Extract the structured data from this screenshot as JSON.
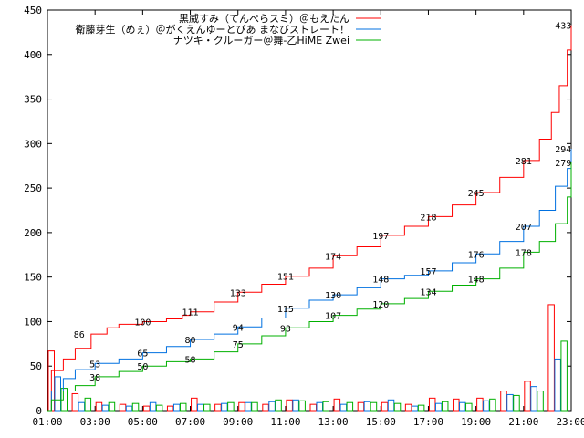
{
  "chart_data": {
    "type": "line",
    "xlim": [
      "01:00",
      "23:00"
    ],
    "ylim": [
      0,
      450
    ],
    "grid": false,
    "legend_position": "top-center",
    "x_ticks": [
      "01:00",
      "03:00",
      "05:00",
      "07:00",
      "09:00",
      "11:00",
      "13:00",
      "15:00",
      "17:00",
      "19:00",
      "21:00",
      "23:00"
    ],
    "y_ticks": [
      "0",
      "50",
      "100",
      "150",
      "200",
      "250",
      "300",
      "350",
      "400",
      "450"
    ],
    "series": [
      {
        "name": "黒威すみ（てんぺらスミ）＠もえたん",
        "color": "#ff0000",
        "points": [
          [
            "01:00",
            0
          ],
          [
            "01:10",
            45
          ],
          [
            "01:40",
            58
          ],
          [
            "02:10",
            70
          ],
          [
            "02:50",
            86
          ],
          [
            "03:30",
            93
          ],
          [
            "04:00",
            97
          ],
          [
            "05:00",
            100
          ],
          [
            "06:00",
            103
          ],
          [
            "06:40",
            107
          ],
          [
            "07:00",
            111
          ],
          [
            "08:00",
            122
          ],
          [
            "09:00",
            133
          ],
          [
            "10:00",
            142
          ],
          [
            "11:00",
            151
          ],
          [
            "12:00",
            160
          ],
          [
            "13:00",
            174
          ],
          [
            "14:00",
            184
          ],
          [
            "15:00",
            197
          ],
          [
            "16:00",
            207
          ],
          [
            "17:00",
            218
          ],
          [
            "18:00",
            231
          ],
          [
            "19:00",
            245
          ],
          [
            "20:00",
            262
          ],
          [
            "21:00",
            281
          ],
          [
            "21:40",
            305
          ],
          [
            "22:10",
            335
          ],
          [
            "22:30",
            365
          ],
          [
            "22:50",
            405
          ],
          [
            "23:00",
            433
          ]
        ],
        "labels": [
          [
            "02:20",
            86,
            "86"
          ],
          [
            "05:00",
            100,
            "100"
          ],
          [
            "07:00",
            111,
            "111"
          ],
          [
            "09:00",
            133,
            "133"
          ],
          [
            "11:00",
            151,
            "151"
          ],
          [
            "13:00",
            174,
            "174"
          ],
          [
            "15:00",
            197,
            "197"
          ],
          [
            "17:00",
            218,
            "218"
          ],
          [
            "19:00",
            245,
            "245"
          ],
          [
            "21:00",
            281,
            "281"
          ],
          [
            "22:40",
            433,
            "433"
          ]
        ]
      },
      {
        "name": "衛藤芽生（めぇ）＠がくえんゆーとぴあ まなびストレート！",
        "color": "#0070e0",
        "points": [
          [
            "01:00",
            0
          ],
          [
            "01:10",
            22
          ],
          [
            "01:40",
            36
          ],
          [
            "02:10",
            46
          ],
          [
            "03:00",
            53
          ],
          [
            "04:00",
            58
          ],
          [
            "05:00",
            65
          ],
          [
            "06:00",
            72
          ],
          [
            "07:00",
            80
          ],
          [
            "08:00",
            86
          ],
          [
            "09:00",
            94
          ],
          [
            "10:00",
            104
          ],
          [
            "11:00",
            115
          ],
          [
            "12:00",
            124
          ],
          [
            "13:00",
            130
          ],
          [
            "14:00",
            138
          ],
          [
            "15:00",
            148
          ],
          [
            "16:00",
            152
          ],
          [
            "17:00",
            157
          ],
          [
            "18:00",
            166
          ],
          [
            "19:00",
            176
          ],
          [
            "20:00",
            190
          ],
          [
            "21:00",
            207
          ],
          [
            "21:40",
            225
          ],
          [
            "22:20",
            252
          ],
          [
            "22:50",
            272
          ],
          [
            "23:00",
            294
          ]
        ],
        "labels": [
          [
            "03:00",
            53,
            "53"
          ],
          [
            "05:00",
            65,
            "65"
          ],
          [
            "07:00",
            80,
            "80"
          ],
          [
            "09:00",
            94,
            "94"
          ],
          [
            "11:00",
            115,
            "115"
          ],
          [
            "13:00",
            130,
            "130"
          ],
          [
            "15:00",
            148,
            "148"
          ],
          [
            "17:00",
            157,
            "157"
          ],
          [
            "19:00",
            176,
            "176"
          ],
          [
            "21:00",
            207,
            "207"
          ],
          [
            "22:40",
            294,
            "294"
          ],
          [
            "22:40",
            279,
            "279"
          ]
        ]
      },
      {
        "name": "ナツキ・クルーガー＠舞-乙HiME Zwei",
        "color": "#00b000",
        "points": [
          [
            "01:00",
            0
          ],
          [
            "01:10",
            12
          ],
          [
            "01:40",
            22
          ],
          [
            "02:10",
            28
          ],
          [
            "03:00",
            38
          ],
          [
            "04:00",
            44
          ],
          [
            "05:00",
            50
          ],
          [
            "06:00",
            55
          ],
          [
            "07:00",
            58
          ],
          [
            "08:00",
            66
          ],
          [
            "09:00",
            75
          ],
          [
            "10:00",
            84
          ],
          [
            "11:00",
            93
          ],
          [
            "12:00",
            100
          ],
          [
            "13:00",
            107
          ],
          [
            "14:00",
            114
          ],
          [
            "15:00",
            120
          ],
          [
            "16:00",
            126
          ],
          [
            "17:00",
            134
          ],
          [
            "18:00",
            141
          ],
          [
            "19:00",
            148
          ],
          [
            "20:00",
            160
          ],
          [
            "21:00",
            178
          ],
          [
            "21:40",
            190
          ],
          [
            "22:20",
            210
          ],
          [
            "22:50",
            240
          ],
          [
            "23:00",
            279
          ]
        ],
        "labels": [
          [
            "03:00",
            38,
            "38"
          ],
          [
            "05:00",
            50,
            "50"
          ],
          [
            "07:00",
            58,
            "58"
          ],
          [
            "09:00",
            75,
            "75"
          ],
          [
            "11:00",
            93,
            "93"
          ],
          [
            "13:00",
            107,
            "107"
          ],
          [
            "15:00",
            120,
            "120"
          ],
          [
            "17:00",
            134,
            "134"
          ],
          [
            "19:00",
            148,
            "148"
          ],
          [
            "21:00",
            178,
            "178"
          ]
        ]
      }
    ],
    "bars": {
      "hours": [
        "01:00",
        "02:00",
        "03:00",
        "04:00",
        "05:00",
        "06:00",
        "07:00",
        "08:00",
        "09:00",
        "10:00",
        "11:00",
        "12:00",
        "13:00",
        "14:00",
        "15:00",
        "16:00",
        "17:00",
        "18:00",
        "19:00",
        "20:00",
        "21:00",
        "22:00"
      ],
      "red": [
        67,
        19,
        9,
        7,
        5,
        5,
        14,
        7,
        9,
        7,
        12,
        7,
        13,
        9,
        9,
        7,
        14,
        13,
        14,
        22,
        33,
        119
      ],
      "blue": [
        38,
        9,
        6,
        5,
        9,
        7,
        7,
        8,
        9,
        10,
        12,
        9,
        7,
        10,
        12,
        5,
        8,
        9,
        11,
        18,
        27,
        58
      ],
      "green": [
        25,
        14,
        9,
        8,
        6,
        8,
        7,
        9,
        9,
        12,
        11,
        10,
        9,
        9,
        8,
        6,
        10,
        8,
        13,
        17,
        22,
        78
      ]
    }
  }
}
